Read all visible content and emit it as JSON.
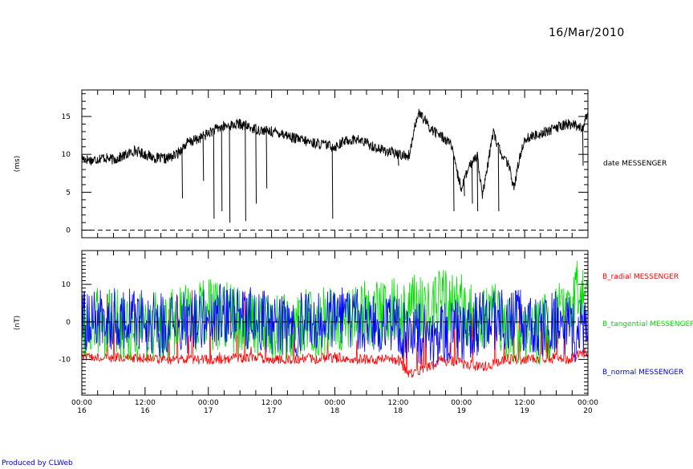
{
  "header": {
    "date": "16/Mar/2010"
  },
  "footer": {
    "credit": "Produced by CLWeb"
  },
  "colors": {
    "axes": "#000000",
    "radial": "#ff0000",
    "tangential": "#00e000",
    "normal": "#0000ff",
    "date": "#000000",
    "credit": "#0000cc"
  },
  "chart_data": [
    {
      "type": "line",
      "ylabel": "(ms)",
      "ylim": [
        -1,
        18.5
      ],
      "yticks": [
        0,
        5,
        10,
        15
      ],
      "xlim": [
        0,
        96
      ],
      "dashed_reference": 0,
      "series": [
        {
          "name": "date MESSENGER",
          "color": "#000000",
          "x": [
            0,
            2,
            4,
            6,
            8,
            10,
            12,
            14,
            16,
            18,
            20,
            22,
            24,
            26,
            28,
            30,
            32,
            34,
            36,
            38,
            40,
            42,
            44,
            46,
            48,
            50,
            52,
            54,
            56,
            58,
            60,
            62,
            62.5,
            63,
            64,
            66,
            68,
            70,
            71,
            72,
            73,
            74,
            75,
            76,
            77,
            78,
            79,
            80,
            81,
            82,
            83,
            84,
            86,
            88,
            90,
            92,
            94,
            95,
            96
          ],
          "y": [
            9.5,
            9.2,
            9.6,
            9.3,
            9.8,
            10.5,
            10,
            9.5,
            9.4,
            10,
            11.5,
            12,
            12.8,
            13.5,
            13.8,
            14,
            13.5,
            13.2,
            13,
            12.8,
            12.2,
            11.8,
            11.5,
            11.3,
            11,
            11.8,
            12,
            11.5,
            10.8,
            10.4,
            10,
            9.8,
            11,
            13.5,
            15.5,
            13.5,
            12.5,
            11.5,
            8,
            5.5,
            7.5,
            9,
            10,
            4.5,
            8.5,
            13,
            11,
            9.5,
            8.5,
            5.5,
            9.5,
            12,
            12.5,
            13,
            13.5,
            14,
            13.8,
            13.5,
            15.5
          ]
        }
      ],
      "spikes": [
        {
          "x": 19,
          "y": 4.2
        },
        {
          "x": 23,
          "y": 6.5
        },
        {
          "x": 25,
          "y": 1.5
        },
        {
          "x": 26.5,
          "y": 2.5
        },
        {
          "x": 28,
          "y": 1
        },
        {
          "x": 31,
          "y": 1.2
        },
        {
          "x": 33,
          "y": 3.5
        },
        {
          "x": 35,
          "y": 5.5
        },
        {
          "x": 47.5,
          "y": 1.5
        },
        {
          "x": 60,
          "y": 8.5
        },
        {
          "x": 70.5,
          "y": 2.5
        },
        {
          "x": 72.5,
          "y": 4.5
        },
        {
          "x": 74,
          "y": 3.5
        },
        {
          "x": 75,
          "y": 2.5
        },
        {
          "x": 79,
          "y": 2.5
        },
        {
          "x": 95,
          "y": 8.5
        }
      ]
    },
    {
      "type": "line",
      "ylabel": "(nT)",
      "ylim": [
        -19.5,
        19
      ],
      "yticks": [
        -10,
        0,
        10
      ],
      "xlim": [
        0,
        96
      ],
      "dashed_reference": 0,
      "xticks": [
        {
          "x": 0,
          "label": "00:00",
          "day": "16"
        },
        {
          "x": 12,
          "label": "12:00",
          "day": "16"
        },
        {
          "x": 24,
          "label": "00:00",
          "day": "17"
        },
        {
          "x": 36,
          "label": "12:00",
          "day": "17"
        },
        {
          "x": 48,
          "label": "00:00",
          "day": "18"
        },
        {
          "x": 60,
          "label": "12:00",
          "day": "18"
        },
        {
          "x": 72,
          "label": "00:00",
          "day": "19"
        },
        {
          "x": 84,
          "label": "12:00",
          "day": "19"
        },
        {
          "x": 96,
          "label": "00:00",
          "day": "20"
        }
      ],
      "series": [
        {
          "name": "B_radial MESSENGER",
          "color": "#ff0000",
          "x": [
            0,
            8,
            16,
            24,
            32,
            40,
            48,
            56,
            60,
            62,
            66,
            68,
            72,
            76,
            80,
            84,
            88,
            92,
            96
          ],
          "y": [
            -9,
            -9.5,
            -10,
            -10,
            -9.5,
            -10,
            -9.5,
            -10,
            -10,
            -14,
            -12,
            -10,
            -11,
            -12,
            -10,
            -10,
            -9.5,
            -10,
            -8
          ],
          "amp": 2.0
        },
        {
          "name": "B_tangential MESSENGER",
          "color": "#00e000",
          "x": [
            0,
            8,
            16,
            24,
            32,
            40,
            48,
            56,
            62,
            66,
            70,
            74,
            78,
            82,
            86,
            90,
            92,
            96
          ],
          "y": [
            0,
            -1,
            -1,
            2,
            0,
            -1,
            1,
            2,
            3,
            4,
            5,
            2,
            1,
            -2,
            -3,
            0,
            4,
            10
          ],
          "amp": 9.5
        },
        {
          "name": "B_normal MESSENGER",
          "color": "#0000ff",
          "x": [
            0,
            8,
            16,
            24,
            28,
            32,
            40,
            48,
            56,
            62,
            66,
            70,
            74,
            78,
            82,
            86,
            90,
            94,
            96
          ],
          "y": [
            0,
            1,
            -1,
            1,
            3,
            1,
            -1,
            1,
            0,
            -3,
            -4,
            -3,
            -1,
            0,
            1,
            -2,
            0,
            -3,
            0
          ],
          "amp": 8.5
        }
      ]
    }
  ]
}
